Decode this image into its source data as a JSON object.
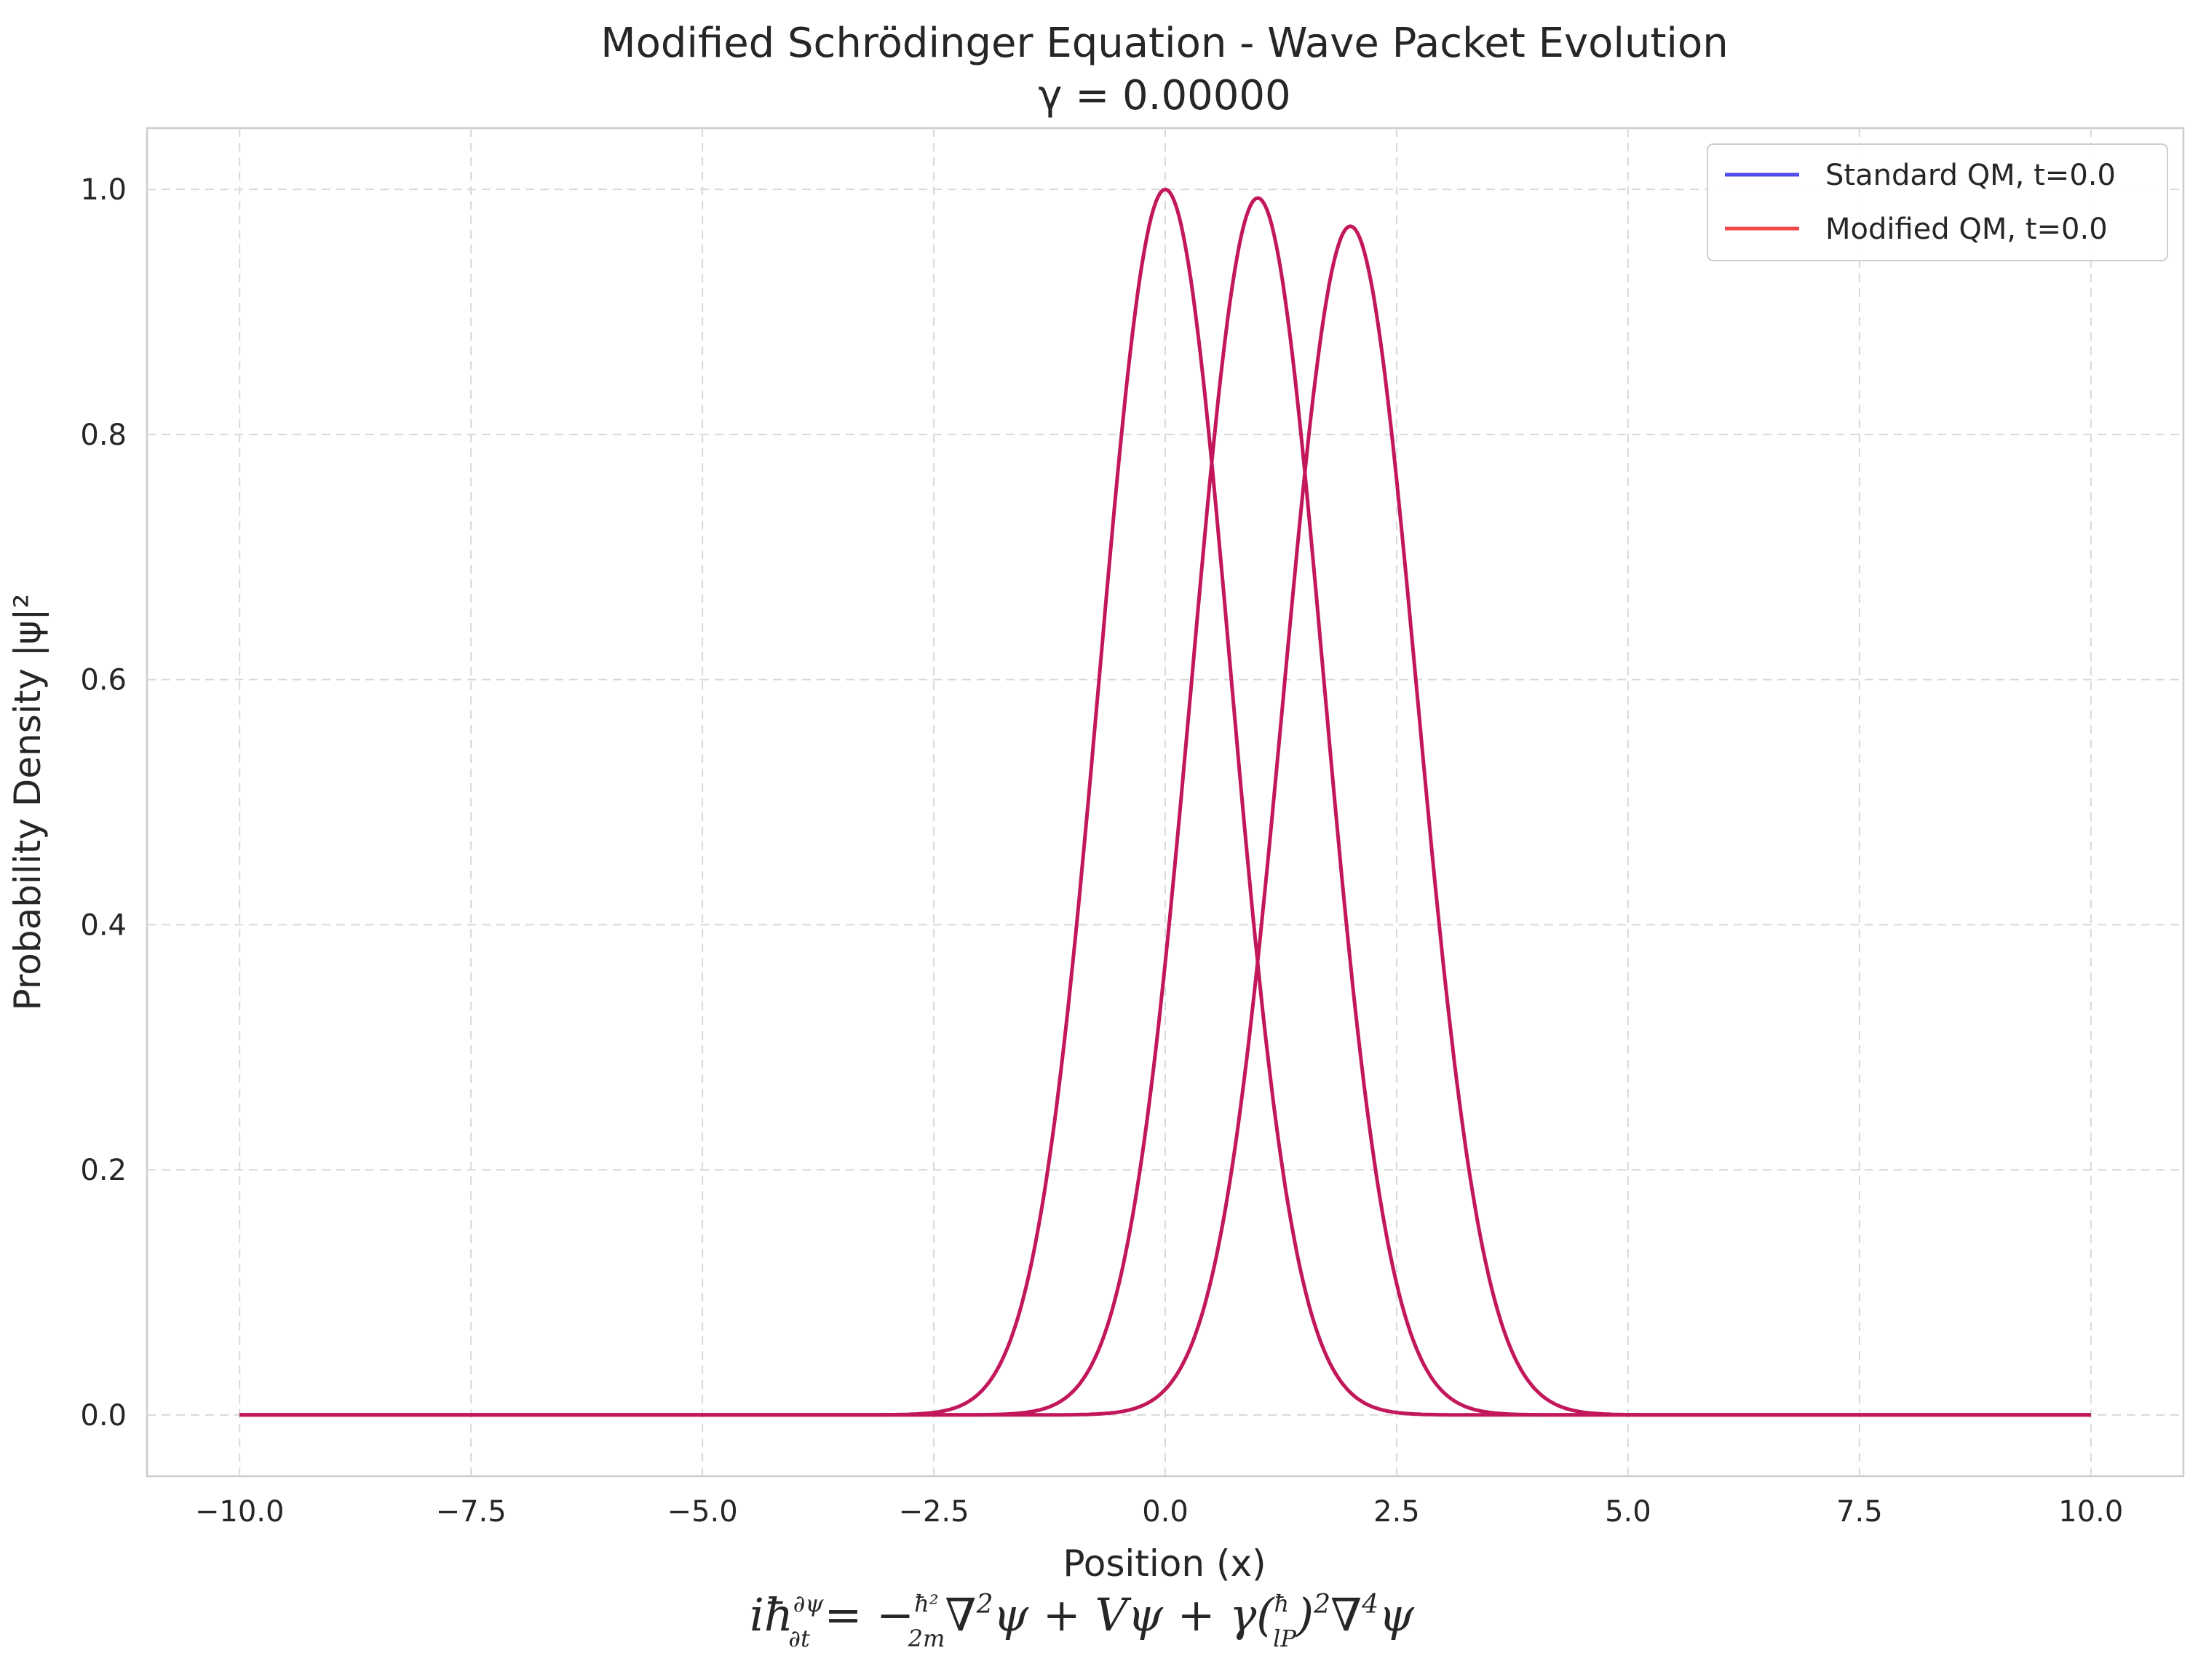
{
  "chart_data": {
    "type": "line",
    "title": "Modified Schrödinger Equation - Wave Packet Evolution",
    "subtitle": "γ = 0.00000",
    "xlabel": "Position (x)",
    "ylabel": "Probability Density |ψ|²",
    "xlim": [
      -11.0,
      11.0
    ],
    "ylim": [
      -0.05,
      1.05
    ],
    "xticks": [
      -10.0,
      -7.5,
      -5.0,
      -2.5,
      0.0,
      2.5,
      5.0,
      7.5,
      10.0
    ],
    "xtick_labels": [
      "−10.0",
      "−7.5",
      "−5.0",
      "−2.5",
      "0.0",
      "2.5",
      "5.0",
      "7.5",
      "10.0"
    ],
    "yticks": [
      0.0,
      0.2,
      0.4,
      0.6,
      0.8,
      1.0
    ],
    "ytick_labels": [
      "0.0",
      "0.2",
      "0.4",
      "0.6",
      "0.8",
      "1.0"
    ],
    "grid": true,
    "legend_position": "top-right",
    "legend": [
      {
        "label": "Standard QM, t=0.0",
        "color": "#4c4cf0"
      },
      {
        "label": "Modified QM, t=0.0",
        "color": "#ef4b4b"
      }
    ],
    "visible_curve_color": "#c2185b",
    "series": [
      {
        "center": 0.0,
        "peak": 1.0,
        "sigma": 1.0
      },
      {
        "center": 1.0,
        "peak": 0.993,
        "sigma": 1.005
      },
      {
        "center": 2.0,
        "peak": 0.97,
        "sigma": 1.02
      }
    ],
    "x_range": [
      -10.0,
      10.0
    ],
    "equation": "iħ∂ψ/∂t = −ħ²/2m ∇²ψ + Vψ + γ(ħ/lP)²∇⁴ψ"
  }
}
